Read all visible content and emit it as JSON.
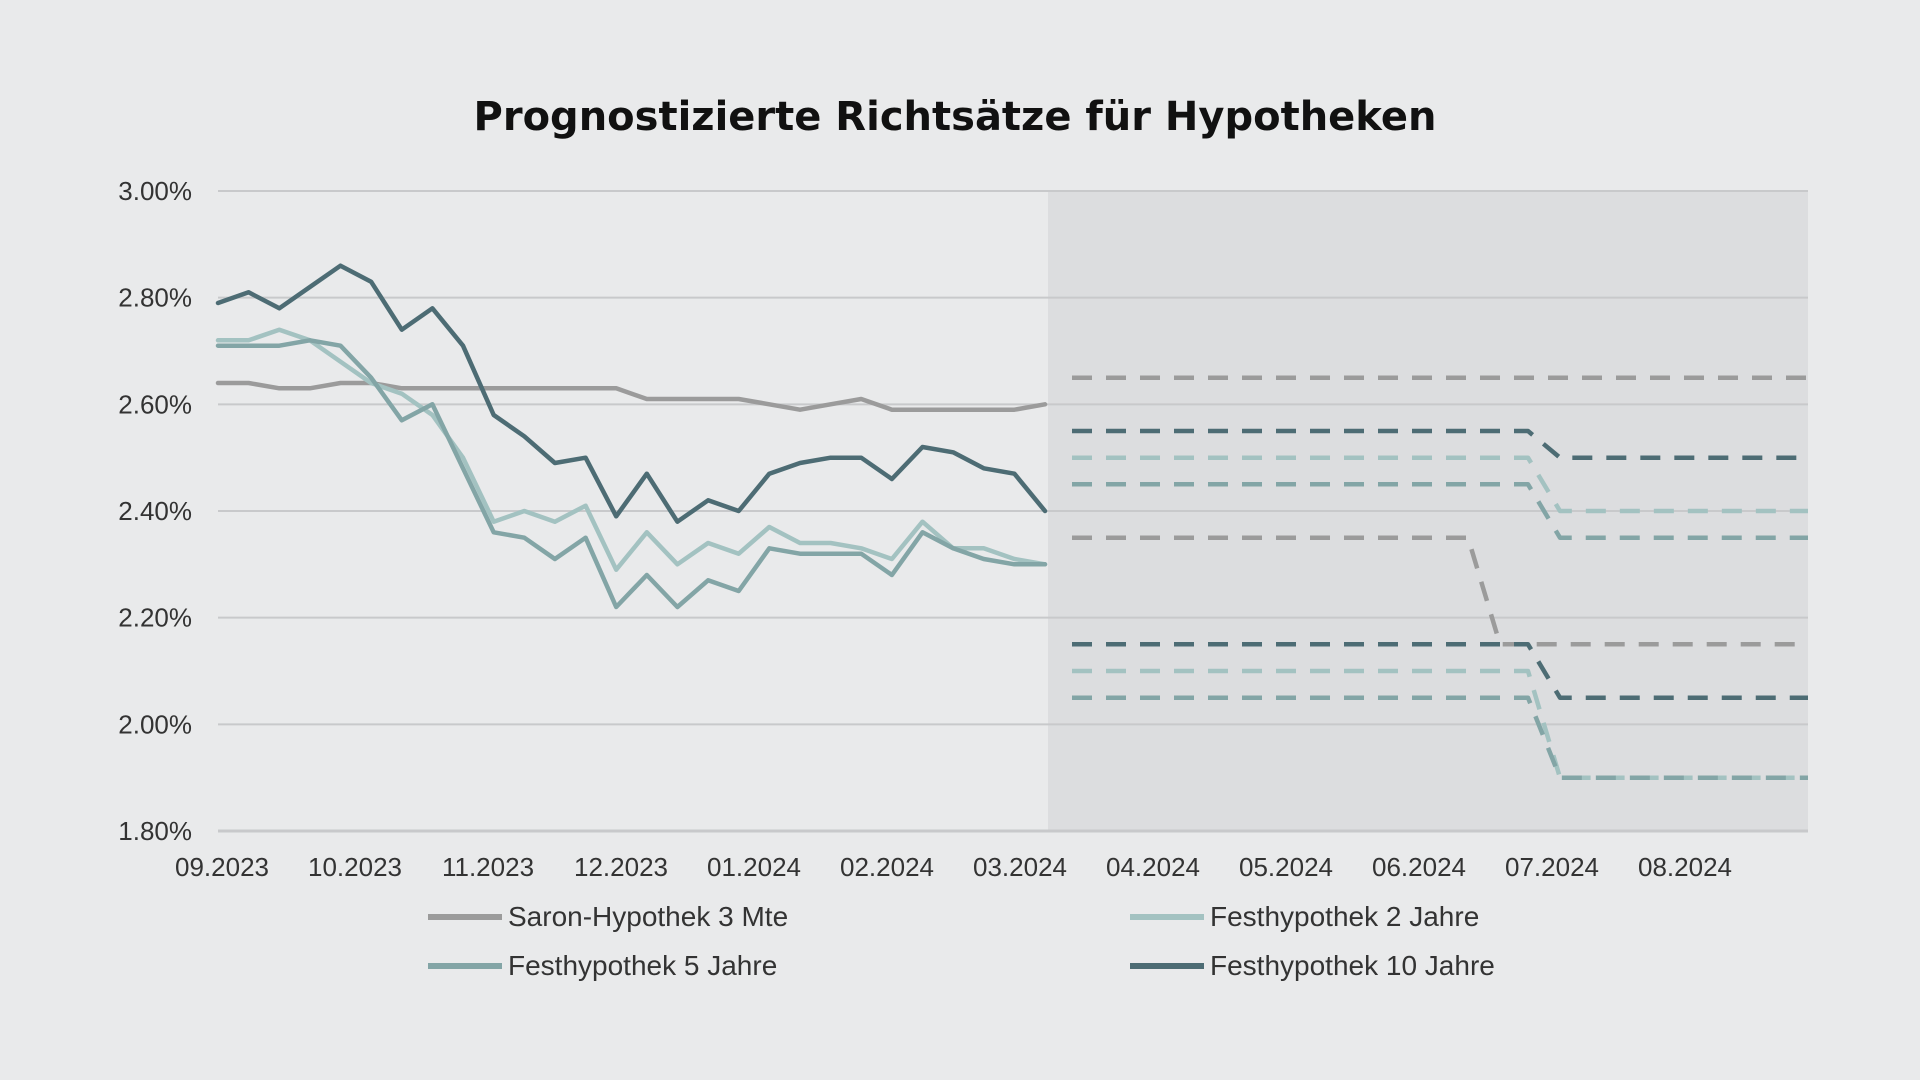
{
  "chart_data": {
    "type": "line",
    "title": "Prognostizierte Richtsätze für Hypotheken",
    "xlabel": "",
    "ylabel": "",
    "ylim": [
      1.8,
      3.0
    ],
    "y_ticks": [
      "1.80%",
      "2.00%",
      "2.20%",
      "2.40%",
      "2.60%",
      "2.80%",
      "3.00%"
    ],
    "y_tick_values": [
      1.8,
      2.0,
      2.2,
      2.4,
      2.6,
      2.8,
      3.0
    ],
    "x_ticks": [
      "09.2023",
      "10.2023",
      "11.2023",
      "12.2023",
      "01.2024",
      "02.2024",
      "03.2024",
      "04.2024",
      "05.2024",
      "06.2024",
      "07.2024",
      "08.2024"
    ],
    "xlim": [
      "09.2023",
      "09.2024"
    ],
    "forecast_from": "03.2024",
    "grid": "horizontal",
    "legend_position": "bottom",
    "colors": {
      "background": "#e9eaeb",
      "forecast_band": "#dcdddf",
      "grid": "#c8c9cb",
      "saron": "#9b9b9b",
      "fest2": "#a3c2c1",
      "fest5": "#83a5a6",
      "fest10": "#4d6c74"
    },
    "series": [
      {
        "name": "Saron-Hypothek 3 Mte",
        "color_key": "saron",
        "historical": {
          "x": [
            "09.2023",
            "09.2023",
            "09.2023",
            "09.2023",
            "10.2023",
            "10.2023",
            "10.2023",
            "10.2023",
            "11.2023",
            "11.2023",
            "11.2023",
            "11.2023",
            "12.2023",
            "12.2023",
            "12.2023",
            "12.2023",
            "01.2024",
            "01.2024",
            "01.2024",
            "01.2024",
            "02.2024",
            "02.2024",
            "02.2024",
            "02.2024",
            "03.2024",
            "03.2024",
            "03.2024",
            "03.2024"
          ],
          "x_week": [
            0,
            1,
            2,
            3,
            0,
            1,
            2,
            3,
            0,
            1,
            2,
            3,
            0,
            1,
            2,
            3,
            0,
            1,
            2,
            3,
            0,
            1,
            2,
            3,
            0,
            1,
            2,
            3
          ],
          "values": [
            2.64,
            2.64,
            2.63,
            2.63,
            2.64,
            2.64,
            2.63,
            2.63,
            2.63,
            2.63,
            2.63,
            2.63,
            2.63,
            2.63,
            2.61,
            2.61,
            2.61,
            2.61,
            2.6,
            2.59,
            2.6,
            2.61,
            2.59,
            2.59,
            2.59,
            2.59,
            2.59,
            2.6
          ]
        },
        "forecast": [
          {
            "x": [
              "03.2024",
              "09.2024"
            ],
            "values": [
              2.65,
              2.65
            ]
          },
          {
            "x": [
              "03.2024",
              "06.2024",
              "07.2024",
              "09.2024"
            ],
            "x_day": [
              15,
              25,
              5,
              0
            ],
            "values": [
              2.35,
              2.35,
              2.15,
              2.15
            ]
          }
        ]
      },
      {
        "name": "Festhypothek 2 Jahre",
        "color_key": "fest2",
        "historical": {
          "values": [
            2.72,
            2.72,
            2.74,
            2.72,
            2.68,
            2.64,
            2.62,
            2.58,
            2.5,
            2.38,
            2.4,
            2.38,
            2.41,
            2.29,
            2.36,
            2.3,
            2.34,
            2.32,
            2.37,
            2.34,
            2.34,
            2.33,
            2.31,
            2.38,
            2.33,
            2.33,
            2.31,
            2.3
          ]
        },
        "forecast": [
          {
            "x": [
              "03.2024",
              "06.2024",
              "07.2024",
              "09.2024"
            ],
            "values": [
              2.5,
              2.5,
              2.4,
              2.4
            ]
          },
          {
            "x": [
              "03.2024",
              "06.2024",
              "07.2024",
              "09.2024"
            ],
            "values": [
              2.1,
              2.1,
              1.9,
              1.9
            ]
          }
        ]
      },
      {
        "name": "Festhypothek 5 Jahre",
        "color_key": "fest5",
        "historical": {
          "values": [
            2.71,
            2.71,
            2.71,
            2.72,
            2.71,
            2.65,
            2.57,
            2.6,
            2.48,
            2.36,
            2.35,
            2.31,
            2.35,
            2.22,
            2.28,
            2.22,
            2.27,
            2.25,
            2.33,
            2.32,
            2.32,
            2.32,
            2.28,
            2.36,
            2.33,
            2.31,
            2.3,
            2.3
          ]
        },
        "forecast": [
          {
            "x": [
              "03.2024",
              "06.2024",
              "07.2024",
              "09.2024"
            ],
            "values": [
              2.45,
              2.45,
              2.35,
              2.35
            ]
          },
          {
            "x": [
              "03.2024",
              "06.2024",
              "07.2024",
              "09.2024"
            ],
            "values": [
              2.05,
              2.05,
              1.9,
              1.9
            ]
          }
        ]
      },
      {
        "name": "Festhypothek 10 Jahre",
        "color_key": "fest10",
        "historical": {
          "values": [
            2.79,
            2.81,
            2.78,
            2.82,
            2.86,
            2.83,
            2.74,
            2.78,
            2.71,
            2.58,
            2.54,
            2.49,
            2.5,
            2.39,
            2.47,
            2.38,
            2.42,
            2.4,
            2.47,
            2.49,
            2.5,
            2.5,
            2.46,
            2.52,
            2.51,
            2.48,
            2.47,
            2.4
          ]
        },
        "forecast": [
          {
            "x": [
              "03.2024",
              "06.2024",
              "07.2024",
              "09.2024"
            ],
            "values": [
              2.55,
              2.55,
              2.5,
              2.5
            ]
          },
          {
            "x": [
              "03.2024",
              "06.2024",
              "07.2024",
              "09.2024"
            ],
            "values": [
              2.15,
              2.15,
              2.05,
              2.05
            ]
          }
        ]
      }
    ]
  }
}
